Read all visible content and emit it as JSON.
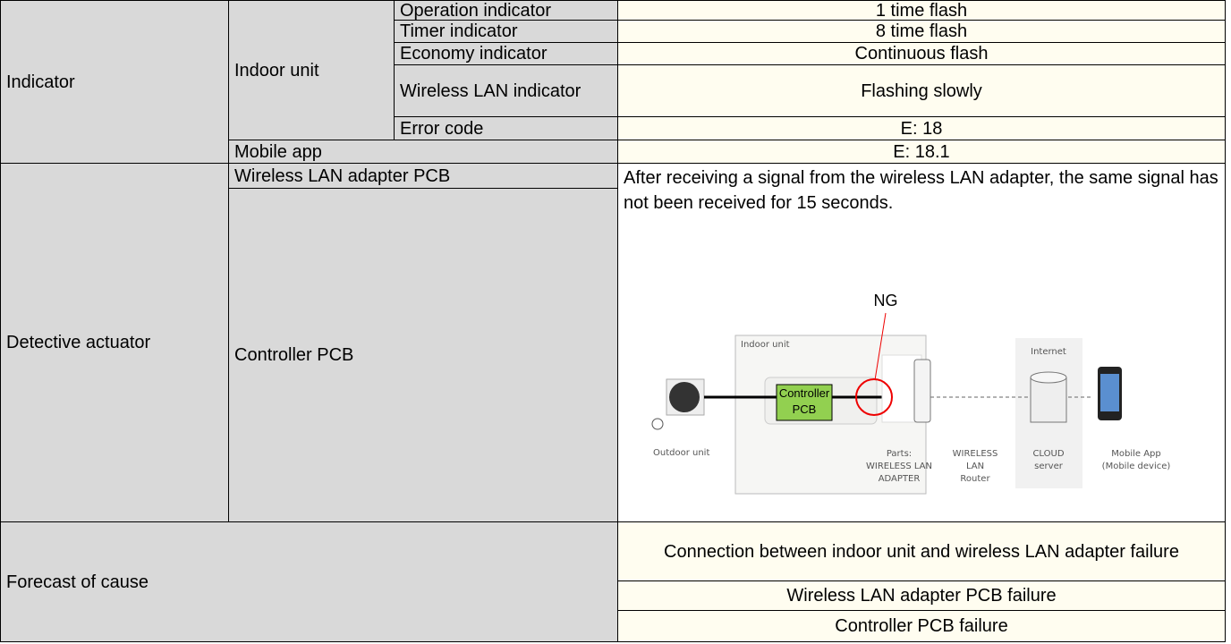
{
  "indicator": {
    "label": "Indicator",
    "indoor_unit": {
      "label": "Indoor unit",
      "items": [
        {
          "name": "Operation indicator",
          "value": "1 time flash"
        },
        {
          "name": "Timer indicator",
          "value": "8 time flash"
        },
        {
          "name": "Economy indicator",
          "value": "Continuous flash"
        },
        {
          "name": "Wireless LAN indicator",
          "value": "Flashing slowly"
        },
        {
          "name": "Error code",
          "value": "E: 18"
        }
      ]
    },
    "mobile_app": {
      "label": "Mobile app",
      "value": "E: 18.1"
    }
  },
  "detective_actuator": {
    "label": "Detective actuator",
    "items": [
      "Wireless LAN adapter PCB",
      "Controller PCB"
    ],
    "description": "After receiving a signal from the wireless LAN adapter, the same signal has not been received for 15 seconds.",
    "diagram": {
      "ng": "NG",
      "indoor_unit": "Indoor unit",
      "internet": "Internet",
      "controller_pcb": [
        "Controller",
        "PCB"
      ],
      "outdoor_unit": "Outdoor unit",
      "parts": [
        "Parts:",
        "WIRELESS LAN",
        "ADAPTER"
      ],
      "router": [
        "WIRELESS",
        "LAN",
        "Router"
      ],
      "cloud": [
        "CLOUD",
        "server"
      ],
      "mobile": [
        "Mobile App",
        "(Mobile device)"
      ]
    }
  },
  "forecast_of_cause": {
    "label": "Forecast of cause",
    "causes": [
      "Connection between indoor unit and wireless LAN adapter failure",
      "Wireless LAN adapter PCB failure",
      "Controller PCB failure"
    ]
  }
}
